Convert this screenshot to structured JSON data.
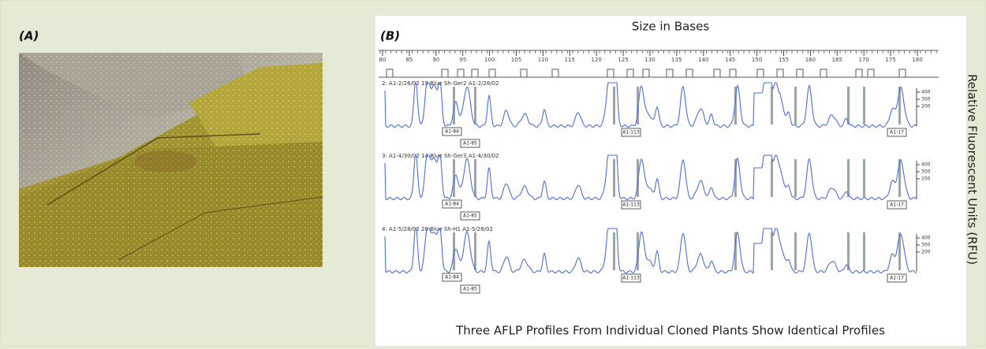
{
  "panel_a": {
    "label": "(A)"
  },
  "panel_b": {
    "label": "(B)",
    "title": "Size in Bases",
    "size_ticks": [
      80,
      85,
      90,
      95,
      100,
      105,
      110,
      115,
      120,
      125,
      130,
      135,
      140,
      145,
      150,
      155,
      160,
      165,
      170,
      175,
      180
    ],
    "y_axis_label": "Relative Fluorescent Units (RFU)",
    "traces": [
      {
        "header": "2: A1-2/26/02 19 Blue   Sh-Ger2 A1-2/26/02",
        "rfu_ticks": [
          400,
          300,
          200
        ],
        "markers": [
          "A1-84",
          "A1-85",
          "A1-113",
          "A1-17"
        ]
      },
      {
        "header": "3: A1-4/30/02 14 Blue   Sh-Ger3 A1-4/30/02",
        "rfu_ticks": [
          400,
          300,
          200
        ],
        "markers": [
          "A1-84",
          "A1-85",
          "A1-113",
          "A1-17"
        ]
      },
      {
        "header": "4: A1-5/28/02 20 Blue   Sh-H1 A1-5/28/02",
        "rfu_ticks": [
          400,
          300,
          200
        ],
        "markers": [
          "A1-84",
          "A1-85",
          "A1-113",
          "A1-17"
        ]
      }
    ],
    "caption": "Three AFLP Profiles From Individual Cloned Plants Show Identical Profiles"
  }
}
